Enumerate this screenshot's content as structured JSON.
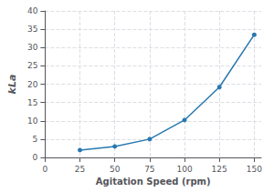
{
  "chart_data": {
    "type": "line",
    "x": [
      25,
      50,
      75,
      100,
      125,
      150
    ],
    "values": [
      2.0,
      3.0,
      5.0,
      10.2,
      19.2,
      33.5
    ],
    "color": "#2878b0",
    "marker": "circle",
    "xlabel": "Agitation Speed (rpm)",
    "ylabel": "kLa",
    "xlim": [
      0,
      155
    ],
    "ylim": [
      0,
      40
    ],
    "xticks": [
      0,
      25,
      50,
      75,
      100,
      125,
      150
    ],
    "yticks": [
      0,
      5,
      10,
      15,
      20,
      25,
      30,
      35,
      40
    ],
    "grid": true
  }
}
